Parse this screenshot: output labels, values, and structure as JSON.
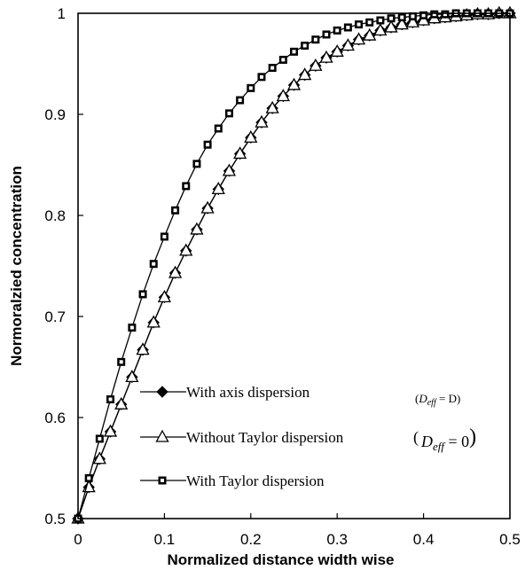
{
  "chart_data": {
    "type": "line",
    "xlabel": "Normalized distance width wise",
    "ylabel": "Normoralzied concentration",
    "xlim": [
      0,
      0.5
    ],
    "ylim": [
      0.5,
      1.0
    ],
    "x_ticks": [
      "0",
      "0.1",
      "0.2",
      "0.3",
      "0.4",
      "0.5"
    ],
    "y_ticks": [
      "0.5",
      "0.6",
      "0.7",
      "0.8",
      "0.9",
      "1"
    ],
    "legend_position": "bottom-left",
    "series": [
      {
        "name": "With axis dispersion",
        "math": {
          "open": "(",
          "symbol": "D",
          "subscript": "eff",
          "rel": " = D)"
        },
        "marker": "diamond",
        "x": [
          0,
          0.0125,
          0.025,
          0.0375,
          0.05,
          0.0625,
          0.075,
          0.0875,
          0.1,
          0.1125,
          0.125,
          0.1375,
          0.15,
          0.1625,
          0.175,
          0.1875,
          0.2,
          0.2125,
          0.225,
          0.2375,
          0.25,
          0.2625,
          0.275,
          0.2875,
          0.3,
          0.3125,
          0.325,
          0.3375,
          0.35,
          0.3625,
          0.375,
          0.3875,
          0.4,
          0.4125,
          0.425,
          0.4375,
          0.45,
          0.4625,
          0.475,
          0.4875,
          0.5
        ],
        "y": [
          0.5,
          0.531,
          0.559,
          0.586,
          0.613,
          0.64,
          0.667,
          0.694,
          0.719,
          0.743,
          0.765,
          0.786,
          0.807,
          0.826,
          0.844,
          0.861,
          0.877,
          0.892,
          0.906,
          0.918,
          0.929,
          0.939,
          0.948,
          0.956,
          0.962,
          0.968,
          0.974,
          0.978,
          0.983,
          0.986,
          0.989,
          0.991,
          0.993,
          0.995,
          0.996,
          0.997,
          0.998,
          0.999,
          0.999,
          1.0,
          1.0
        ]
      },
      {
        "name": "Without Taylor dispersion",
        "math": {
          "open": "(",
          "symbol": "D",
          "subscript": "eff",
          "rel": " = 0",
          "close": ")"
        },
        "marker": "triangle",
        "x": [
          0,
          0.0125,
          0.025,
          0.0375,
          0.05,
          0.0625,
          0.075,
          0.0875,
          0.1,
          0.1125,
          0.125,
          0.1375,
          0.15,
          0.1625,
          0.175,
          0.1875,
          0.2,
          0.2125,
          0.225,
          0.2375,
          0.25,
          0.2625,
          0.275,
          0.2875,
          0.3,
          0.3125,
          0.325,
          0.3375,
          0.35,
          0.3625,
          0.375,
          0.3875,
          0.4,
          0.4125,
          0.425,
          0.4375,
          0.45,
          0.4625,
          0.475,
          0.4875,
          0.5
        ],
        "y": [
          0.5,
          0.531,
          0.559,
          0.586,
          0.613,
          0.64,
          0.667,
          0.694,
          0.719,
          0.743,
          0.765,
          0.786,
          0.807,
          0.826,
          0.844,
          0.861,
          0.877,
          0.892,
          0.906,
          0.918,
          0.929,
          0.939,
          0.948,
          0.956,
          0.962,
          0.968,
          0.974,
          0.978,
          0.983,
          0.986,
          0.989,
          0.991,
          0.993,
          0.995,
          0.996,
          0.997,
          0.998,
          0.999,
          0.999,
          1.0,
          1.0
        ]
      },
      {
        "name": "With Taylor dispersion",
        "marker": "square",
        "x": [
          0,
          0.0125,
          0.025,
          0.0375,
          0.05,
          0.0625,
          0.075,
          0.0875,
          0.1,
          0.1125,
          0.125,
          0.1375,
          0.15,
          0.1625,
          0.175,
          0.1875,
          0.2,
          0.2125,
          0.225,
          0.2375,
          0.25,
          0.2625,
          0.275,
          0.2875,
          0.3,
          0.3125,
          0.325,
          0.3375,
          0.35,
          0.3625,
          0.375,
          0.3875,
          0.4,
          0.4125,
          0.425,
          0.4375,
          0.45,
          0.4625,
          0.475,
          0.4875,
          0.5
        ],
        "y": [
          0.5,
          0.54,
          0.579,
          0.618,
          0.655,
          0.689,
          0.722,
          0.752,
          0.779,
          0.805,
          0.829,
          0.851,
          0.87,
          0.886,
          0.901,
          0.914,
          0.926,
          0.937,
          0.946,
          0.954,
          0.962,
          0.968,
          0.974,
          0.979,
          0.983,
          0.986,
          0.989,
          0.991,
          0.993,
          0.995,
          0.996,
          0.997,
          0.998,
          0.999,
          0.999,
          1.0,
          1.0,
          1.0,
          1.0,
          1.0,
          1.0
        ]
      }
    ]
  }
}
